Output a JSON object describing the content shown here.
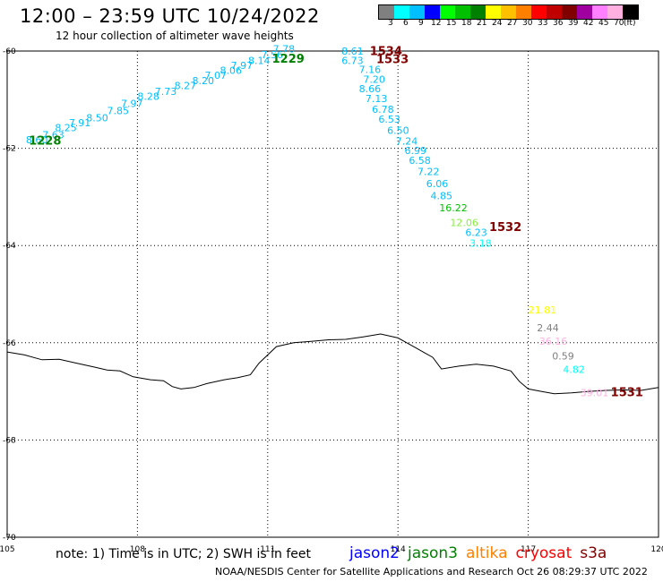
{
  "header": {
    "title": "12:00 – 23:59 UTC 10/24/2022",
    "subtitle": "12 hour collection of altimeter wave heights"
  },
  "scale": {
    "colors": [
      "#808080",
      "#00ffff",
      "#00bfff",
      "#0000ff",
      "#00ff00",
      "#00c000",
      "#008000",
      "#ffff00",
      "#ffc000",
      "#ff8000",
      "#ff0000",
      "#c00000",
      "#800000",
      "#a000a0",
      "#ff80ff",
      "#ffb0e0",
      "#000000"
    ],
    "labels": [
      "3",
      "6",
      "9",
      "12",
      "15",
      "18",
      "21",
      "24",
      "27",
      "30",
      "33",
      "36",
      "39",
      "42",
      "45",
      "70",
      "(ft)"
    ]
  },
  "map_data": {
    "x_range": [
      105,
      120
    ],
    "y_range": [
      -70,
      -60
    ],
    "x_ticks": [
      "105",
      "108",
      "111",
      "114",
      "117",
      "120"
    ],
    "y_ticks": [
      "-60",
      "-62",
      "-64",
      "-66",
      "-68",
      "-70"
    ],
    "coastline": [
      [
        105.0,
        -66.19
      ],
      [
        105.4,
        -66.25
      ],
      [
        105.8,
        -66.35
      ],
      [
        106.2,
        -66.34
      ],
      [
        106.6,
        -66.42
      ],
      [
        107.0,
        -66.5
      ],
      [
        107.3,
        -66.56
      ],
      [
        107.6,
        -66.58
      ],
      [
        107.9,
        -66.7
      ],
      [
        108.3,
        -66.76
      ],
      [
        108.6,
        -66.78
      ],
      [
        108.8,
        -66.9
      ],
      [
        109.0,
        -66.95
      ],
      [
        109.3,
        -66.92
      ],
      [
        109.6,
        -66.84
      ],
      [
        110.0,
        -66.76
      ],
      [
        110.3,
        -66.72
      ],
      [
        110.6,
        -66.66
      ],
      [
        110.8,
        -66.42
      ],
      [
        111.2,
        -66.08
      ],
      [
        111.6,
        -66.0
      ],
      [
        112.0,
        -65.97
      ],
      [
        112.4,
        -65.94
      ],
      [
        112.8,
        -65.93
      ],
      [
        113.2,
        -65.88
      ],
      [
        113.6,
        -65.82
      ],
      [
        114.0,
        -65.9
      ],
      [
        114.4,
        -66.1
      ],
      [
        114.6,
        -66.2
      ],
      [
        114.8,
        -66.3
      ],
      [
        115.0,
        -66.54
      ],
      [
        115.4,
        -66.48
      ],
      [
        115.8,
        -66.44
      ],
      [
        116.2,
        -66.48
      ],
      [
        116.6,
        -66.58
      ],
      [
        116.8,
        -66.8
      ],
      [
        117.0,
        -66.95
      ],
      [
        117.3,
        -67.0
      ],
      [
        117.6,
        -67.05
      ],
      [
        118.0,
        -67.03
      ],
      [
        118.4,
        -67.0
      ],
      [
        118.8,
        -66.98
      ],
      [
        119.2,
        -66.97
      ],
      [
        119.6,
        -66.98
      ],
      [
        120.0,
        -66.92
      ]
    ],
    "wave_heights": [
      {
        "lon": 105.43,
        "lat": -61.9,
        "text": "8.60",
        "color": "#00bfff"
      },
      {
        "lon": 105.81,
        "lat": -61.8,
        "text": "7.63",
        "color": "#00bfff"
      },
      {
        "lon": 106.1,
        "lat": -61.65,
        "text": "8.25",
        "color": "#00bfff"
      },
      {
        "lon": 106.42,
        "lat": -61.55,
        "text": "7.91",
        "color": "#00bfff"
      },
      {
        "lon": 106.82,
        "lat": -61.45,
        "text": "8.50",
        "color": "#00bfff"
      },
      {
        "lon": 107.3,
        "lat": -61.3,
        "text": "7.85",
        "color": "#00bfff"
      },
      {
        "lon": 107.62,
        "lat": -61.15,
        "text": "7.97",
        "color": "#00bfff"
      },
      {
        "lon": 108.0,
        "lat": -61.0,
        "text": "8.28",
        "color": "#00bfff"
      },
      {
        "lon": 108.4,
        "lat": -60.9,
        "text": "7.73",
        "color": "#00bfff"
      },
      {
        "lon": 108.85,
        "lat": -60.78,
        "text": "8.27",
        "color": "#00bfff"
      },
      {
        "lon": 109.26,
        "lat": -60.68,
        "text": "8.20",
        "color": "#00bfff"
      },
      {
        "lon": 109.55,
        "lat": -60.57,
        "text": "7.07",
        "color": "#00bfff"
      },
      {
        "lon": 109.9,
        "lat": -60.47,
        "text": "8.06",
        "color": "#00bfff"
      },
      {
        "lon": 110.15,
        "lat": -60.37,
        "text": "7.97",
        "color": "#00bfff"
      },
      {
        "lon": 110.55,
        "lat": -60.27,
        "text": "8.14",
        "color": "#00bfff"
      },
      {
        "lon": 110.85,
        "lat": -60.15,
        "text": "7.56",
        "color": "#00bfff"
      },
      {
        "lon": 111.12,
        "lat": -60.03,
        "text": "7.78",
        "color": "#00bfff"
      },
      {
        "lon": 112.7,
        "lat": -60.07,
        "text": "8.61",
        "color": "#00bfff"
      },
      {
        "lon": 112.7,
        "lat": -60.27,
        "text": "6.73",
        "color": "#00bfff"
      },
      {
        "lon": 113.1,
        "lat": -60.45,
        "text": "7.16",
        "color": "#00bfff"
      },
      {
        "lon": 113.2,
        "lat": -60.65,
        "text": "7.20",
        "color": "#00bfff"
      },
      {
        "lon": 113.1,
        "lat": -60.85,
        "text": "8.66",
        "color": "#00bfff"
      },
      {
        "lon": 113.25,
        "lat": -61.05,
        "text": "7.13",
        "color": "#00bfff"
      },
      {
        "lon": 113.4,
        "lat": -61.27,
        "text": "6.78",
        "color": "#00bfff"
      },
      {
        "lon": 113.55,
        "lat": -61.47,
        "text": "6.53",
        "color": "#00bfff"
      },
      {
        "lon": 113.75,
        "lat": -61.7,
        "text": "6.50",
        "color": "#00bfff"
      },
      {
        "lon": 113.95,
        "lat": -61.92,
        "text": "7.24",
        "color": "#00bfff"
      },
      {
        "lon": 114.15,
        "lat": -62.12,
        "text": "6.99",
        "color": "#00bfff"
      },
      {
        "lon": 114.25,
        "lat": -62.32,
        "text": "6.58",
        "color": "#00bfff"
      },
      {
        "lon": 114.45,
        "lat": -62.55,
        "text": "7.22",
        "color": "#00bfff"
      },
      {
        "lon": 114.65,
        "lat": -62.8,
        "text": "6.06",
        "color": "#00bfff"
      },
      {
        "lon": 114.75,
        "lat": -63.05,
        "text": "4.85",
        "color": "#00bfff"
      },
      {
        "lon": 114.95,
        "lat": -63.3,
        "text": "16.22",
        "color": "#00c000"
      },
      {
        "lon": 115.2,
        "lat": -63.6,
        "text": "12.06",
        "color": "#88ee44"
      },
      {
        "lon": 115.55,
        "lat": -63.8,
        "text": "6.23",
        "color": "#00bfff"
      },
      {
        "lon": 115.65,
        "lat": -64.02,
        "text": "3.18",
        "color": "#00ffff"
      },
      {
        "lon": 117.0,
        "lat": -65.4,
        "text": "21.81",
        "color": "#ffff00"
      },
      {
        "lon": 117.2,
        "lat": -65.76,
        "text": "2.44",
        "color": "#808080"
      },
      {
        "lon": 117.25,
        "lat": -66.04,
        "text": "36.16",
        "color": "#ffb0e0"
      },
      {
        "lon": 117.55,
        "lat": -66.34,
        "text": "0.59",
        "color": "#808080"
      },
      {
        "lon": 117.8,
        "lat": -66.62,
        "text": "4.82",
        "color": "#00ffff"
      },
      {
        "lon": 118.2,
        "lat": -67.1,
        "text": "39.01",
        "color": "#ffb0e0"
      }
    ],
    "time_labels": [
      {
        "lon": 105.5,
        "lat": -61.92,
        "text": "1228",
        "color": "#008000"
      },
      {
        "lon": 111.1,
        "lat": -60.24,
        "text": "1229",
        "color": "#008000"
      },
      {
        "lon": 113.35,
        "lat": -60.08,
        "text": "1534",
        "color": "#800000"
      },
      {
        "lon": 113.5,
        "lat": -60.25,
        "text": "1533",
        "color": "#800000"
      },
      {
        "lon": 116.1,
        "lat": -63.7,
        "text": "1532",
        "color": "#800000"
      },
      {
        "lon": 118.9,
        "lat": -67.1,
        "text": "1531",
        "color": "#800000"
      }
    ]
  },
  "footer": {
    "note": "note: 1) Time is in UTC; 2) SWH is in feet",
    "satellites": [
      {
        "name": "jason2",
        "color": "#0000ff"
      },
      {
        "name": "jason3",
        "color": "#008000"
      },
      {
        "name": "altika",
        "color": "#ff8000"
      },
      {
        "name": "cryosat",
        "color": "#ff0000"
      },
      {
        "name": "s3a",
        "color": "#800000"
      }
    ],
    "credit": "NOAA/NESDIS Center for Satellite Applications and Research    Oct 26 08:29:37 UTC 2022"
  }
}
